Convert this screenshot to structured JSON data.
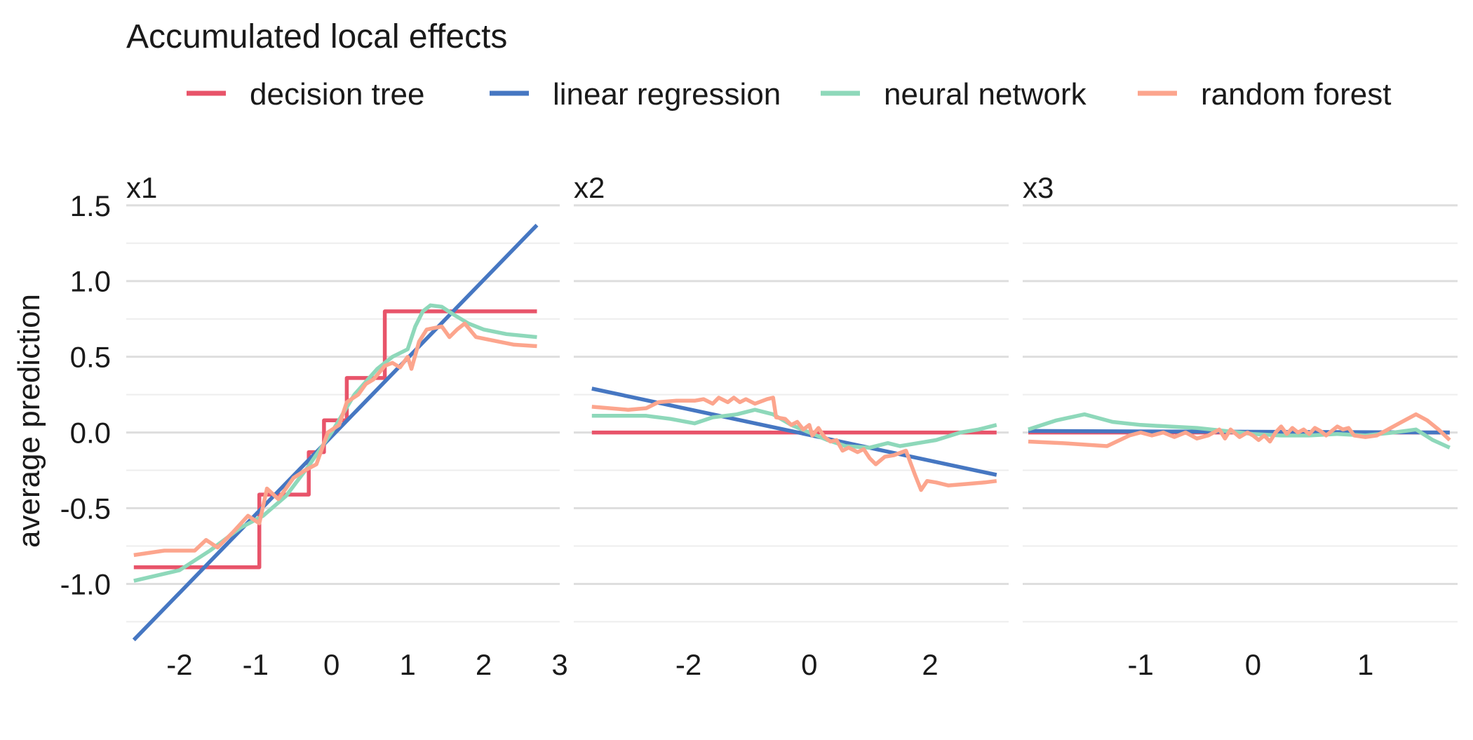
{
  "chart_data": {
    "type": "line",
    "title": "Accumulated local effects",
    "ylabel": "average prediction",
    "xlabel": "",
    "ylim": [
      -1.35,
      1.55
    ],
    "y_ticks": [
      -1.0,
      -0.5,
      0.0,
      0.5,
      1.0,
      1.5
    ],
    "y_tick_labels": [
      "-1.0",
      "-0.5",
      "0.0",
      "0.5",
      "1.0",
      "1.5"
    ],
    "grid": true,
    "legend_position": "top",
    "legend": [
      {
        "name": "decision tree",
        "color": "#E8546A"
      },
      {
        "name": "linear regression",
        "color": "#4677C2"
      },
      {
        "name": "neural network",
        "color": "#8ED8BA"
      },
      {
        "name": "random forest",
        "color": "#FCA58D"
      }
    ],
    "panels": [
      {
        "label": "x1",
        "xlim": [
          -2.7,
          3.0
        ],
        "x_ticks": [
          -2,
          -1,
          0,
          1,
          2,
          3
        ],
        "x_tick_labels": [
          "-2",
          "-1",
          "0",
          "1",
          "2",
          "3"
        ],
        "series": [
          {
            "name": "decision tree",
            "points": [
              [
                -2.6,
                -0.89
              ],
              [
                -0.95,
                -0.89
              ],
              [
                -0.95,
                -0.41
              ],
              [
                -0.3,
                -0.41
              ],
              [
                -0.3,
                -0.13
              ],
              [
                -0.1,
                -0.13
              ],
              [
                -0.1,
                0.08
              ],
              [
                0.2,
                0.08
              ],
              [
                0.2,
                0.36
              ],
              [
                0.7,
                0.36
              ],
              [
                0.7,
                0.8
              ],
              [
                2.7,
                0.8
              ]
            ]
          },
          {
            "name": "linear regression",
            "points": [
              [
                -2.6,
                -1.37
              ],
              [
                2.7,
                1.37
              ]
            ]
          },
          {
            "name": "neural network",
            "points": [
              [
                -2.6,
                -0.98
              ],
              [
                -2.0,
                -0.91
              ],
              [
                -1.6,
                -0.78
              ],
              [
                -1.2,
                -0.63
              ],
              [
                -0.9,
                -0.55
              ],
              [
                -0.6,
                -0.42
              ],
              [
                -0.3,
                -0.22
              ],
              [
                0.0,
                0.0
              ],
              [
                0.3,
                0.25
              ],
              [
                0.6,
                0.42
              ],
              [
                0.8,
                0.5
              ],
              [
                1.0,
                0.55
              ],
              [
                1.1,
                0.7
              ],
              [
                1.2,
                0.8
              ],
              [
                1.3,
                0.84
              ],
              [
                1.45,
                0.83
              ],
              [
                1.6,
                0.78
              ],
              [
                1.8,
                0.72
              ],
              [
                2.0,
                0.68
              ],
              [
                2.3,
                0.65
              ],
              [
                2.7,
                0.63
              ]
            ]
          },
          {
            "name": "random forest",
            "points": [
              [
                -2.6,
                -0.81
              ],
              [
                -2.2,
                -0.78
              ],
              [
                -1.8,
                -0.78
              ],
              [
                -1.65,
                -0.71
              ],
              [
                -1.5,
                -0.76
              ],
              [
                -1.3,
                -0.66
              ],
              [
                -1.1,
                -0.55
              ],
              [
                -0.95,
                -0.6
              ],
              [
                -0.85,
                -0.37
              ],
              [
                -0.7,
                -0.44
              ],
              [
                -0.5,
                -0.3
              ],
              [
                -0.35,
                -0.25
              ],
              [
                -0.2,
                -0.21
              ],
              [
                -0.05,
                0.0
              ],
              [
                0.1,
                0.05
              ],
              [
                0.2,
                0.2
              ],
              [
                0.35,
                0.25
              ],
              [
                0.45,
                0.32
              ],
              [
                0.55,
                0.35
              ],
              [
                0.7,
                0.44
              ],
              [
                0.8,
                0.46
              ],
              [
                0.9,
                0.43
              ],
              [
                1.0,
                0.5
              ],
              [
                1.05,
                0.42
              ],
              [
                1.15,
                0.6
              ],
              [
                1.25,
                0.68
              ],
              [
                1.35,
                0.69
              ],
              [
                1.45,
                0.7
              ],
              [
                1.55,
                0.63
              ],
              [
                1.65,
                0.68
              ],
              [
                1.75,
                0.72
              ],
              [
                1.9,
                0.63
              ],
              [
                2.1,
                0.61
              ],
              [
                2.4,
                0.58
              ],
              [
                2.7,
                0.57
              ]
            ]
          }
        ]
      },
      {
        "label": "x2",
        "xlim": [
          -3.9,
          3.3
        ],
        "x_ticks": [
          -2,
          0,
          2
        ],
        "x_tick_labels": [
          "-2",
          "0",
          "2"
        ],
        "series": [
          {
            "name": "decision tree",
            "points": [
              [
                -3.6,
                0.0
              ],
              [
                3.1,
                0.0
              ]
            ]
          },
          {
            "name": "linear regression",
            "points": [
              [
                -3.6,
                0.29
              ],
              [
                3.1,
                -0.28
              ]
            ]
          },
          {
            "name": "neural network",
            "points": [
              [
                -3.6,
                0.11
              ],
              [
                -2.7,
                0.11
              ],
              [
                -2.3,
                0.09
              ],
              [
                -1.9,
                0.06
              ],
              [
                -1.6,
                0.1
              ],
              [
                -1.2,
                0.12
              ],
              [
                -0.9,
                0.15
              ],
              [
                -0.6,
                0.12
              ],
              [
                -0.3,
                0.05
              ],
              [
                0.0,
                0.0
              ],
              [
                0.3,
                -0.05
              ],
              [
                0.6,
                -0.09
              ],
              [
                1.0,
                -0.1
              ],
              [
                1.3,
                -0.07
              ],
              [
                1.5,
                -0.09
              ],
              [
                1.8,
                -0.07
              ],
              [
                2.1,
                -0.05
              ],
              [
                2.5,
                0.0
              ],
              [
                2.8,
                0.02
              ],
              [
                3.1,
                0.05
              ]
            ]
          },
          {
            "name": "random forest",
            "points": [
              [
                -3.6,
                0.17
              ],
              [
                -3.0,
                0.15
              ],
              [
                -2.7,
                0.16
              ],
              [
                -2.5,
                0.2
              ],
              [
                -2.2,
                0.21
              ],
              [
                -1.9,
                0.21
              ],
              [
                -1.75,
                0.22
              ],
              [
                -1.6,
                0.19
              ],
              [
                -1.5,
                0.23
              ],
              [
                -1.35,
                0.2
              ],
              [
                -1.25,
                0.23
              ],
              [
                -1.15,
                0.2
              ],
              [
                -1.05,
                0.22
              ],
              [
                -0.9,
                0.19
              ],
              [
                -0.7,
                0.22
              ],
              [
                -0.6,
                0.23
              ],
              [
                -0.55,
                0.1
              ],
              [
                -0.4,
                0.09
              ],
              [
                -0.3,
                0.05
              ],
              [
                -0.2,
                0.07
              ],
              [
                -0.1,
                0.02
              ],
              [
                0.0,
                0.05
              ],
              [
                0.05,
                -0.02
              ],
              [
                0.15,
                0.03
              ],
              [
                0.25,
                -0.03
              ],
              [
                0.35,
                -0.06
              ],
              [
                0.45,
                -0.05
              ],
              [
                0.55,
                -0.12
              ],
              [
                0.65,
                -0.1
              ],
              [
                0.8,
                -0.13
              ],
              [
                0.9,
                -0.11
              ],
              [
                1.0,
                -0.17
              ],
              [
                1.1,
                -0.21
              ],
              [
                1.25,
                -0.16
              ],
              [
                1.4,
                -0.15
              ],
              [
                1.6,
                -0.12
              ],
              [
                1.75,
                -0.28
              ],
              [
                1.85,
                -0.38
              ],
              [
                1.95,
                -0.32
              ],
              [
                2.1,
                -0.33
              ],
              [
                2.3,
                -0.35
              ],
              [
                2.6,
                -0.34
              ],
              [
                2.9,
                -0.33
              ],
              [
                3.1,
                -0.32
              ]
            ]
          }
        ]
      },
      {
        "label": "x3",
        "xlim": [
          -2.05,
          1.82
        ],
        "x_ticks": [
          -1,
          0,
          1
        ],
        "x_tick_labels": [
          "-1",
          "0",
          "1"
        ],
        "series": [
          {
            "name": "decision tree",
            "points": [
              [
                -2.0,
                0.0
              ],
              [
                1.75,
                0.0
              ]
            ]
          },
          {
            "name": "linear regression",
            "points": [
              [
                -2.0,
                0.01
              ],
              [
                1.75,
                0.0
              ]
            ]
          },
          {
            "name": "neural network",
            "points": [
              [
                -2.0,
                0.02
              ],
              [
                -1.75,
                0.08
              ],
              [
                -1.5,
                0.12
              ],
              [
                -1.25,
                0.07
              ],
              [
                -1.0,
                0.05
              ],
              [
                -0.75,
                0.04
              ],
              [
                -0.5,
                0.03
              ],
              [
                -0.25,
                0.01
              ],
              [
                0.0,
                -0.01
              ],
              [
                0.25,
                -0.02
              ],
              [
                0.5,
                -0.02
              ],
              [
                0.75,
                -0.01
              ],
              [
                1.0,
                -0.02
              ],
              [
                1.25,
                0.0
              ],
              [
                1.45,
                0.02
              ],
              [
                1.6,
                -0.05
              ],
              [
                1.75,
                -0.1
              ]
            ]
          },
          {
            "name": "random forest",
            "points": [
              [
                -2.0,
                -0.06
              ],
              [
                -1.7,
                -0.07
              ],
              [
                -1.3,
                -0.09
              ],
              [
                -1.1,
                -0.02
              ],
              [
                -1.0,
                0.0
              ],
              [
                -0.9,
                -0.02
              ],
              [
                -0.8,
                0.0
              ],
              [
                -0.7,
                -0.03
              ],
              [
                -0.6,
                0.0
              ],
              [
                -0.5,
                -0.04
              ],
              [
                -0.4,
                -0.02
              ],
              [
                -0.3,
                0.02
              ],
              [
                -0.25,
                -0.04
              ],
              [
                -0.2,
                0.02
              ],
              [
                -0.12,
                -0.03
              ],
              [
                -0.05,
                0.0
              ],
              [
                0.0,
                -0.02
              ],
              [
                0.05,
                -0.05
              ],
              [
                0.1,
                -0.02
              ],
              [
                0.15,
                -0.06
              ],
              [
                0.2,
                0.0
              ],
              [
                0.25,
                0.04
              ],
              [
                0.3,
                -0.01
              ],
              [
                0.35,
                0.03
              ],
              [
                0.4,
                0.0
              ],
              [
                0.45,
                0.02
              ],
              [
                0.5,
                -0.01
              ],
              [
                0.55,
                0.03
              ],
              [
                0.6,
                0.01
              ],
              [
                0.65,
                -0.02
              ],
              [
                0.7,
                0.01
              ],
              [
                0.75,
                0.04
              ],
              [
                0.8,
                0.02
              ],
              [
                0.85,
                0.03
              ],
              [
                0.9,
                -0.02
              ],
              [
                1.0,
                -0.03
              ],
              [
                1.1,
                -0.02
              ],
              [
                1.2,
                0.02
              ],
              [
                1.3,
                0.06
              ],
              [
                1.45,
                0.12
              ],
              [
                1.55,
                0.08
              ],
              [
                1.65,
                0.02
              ],
              [
                1.75,
                -0.05
              ]
            ]
          }
        ]
      }
    ]
  }
}
